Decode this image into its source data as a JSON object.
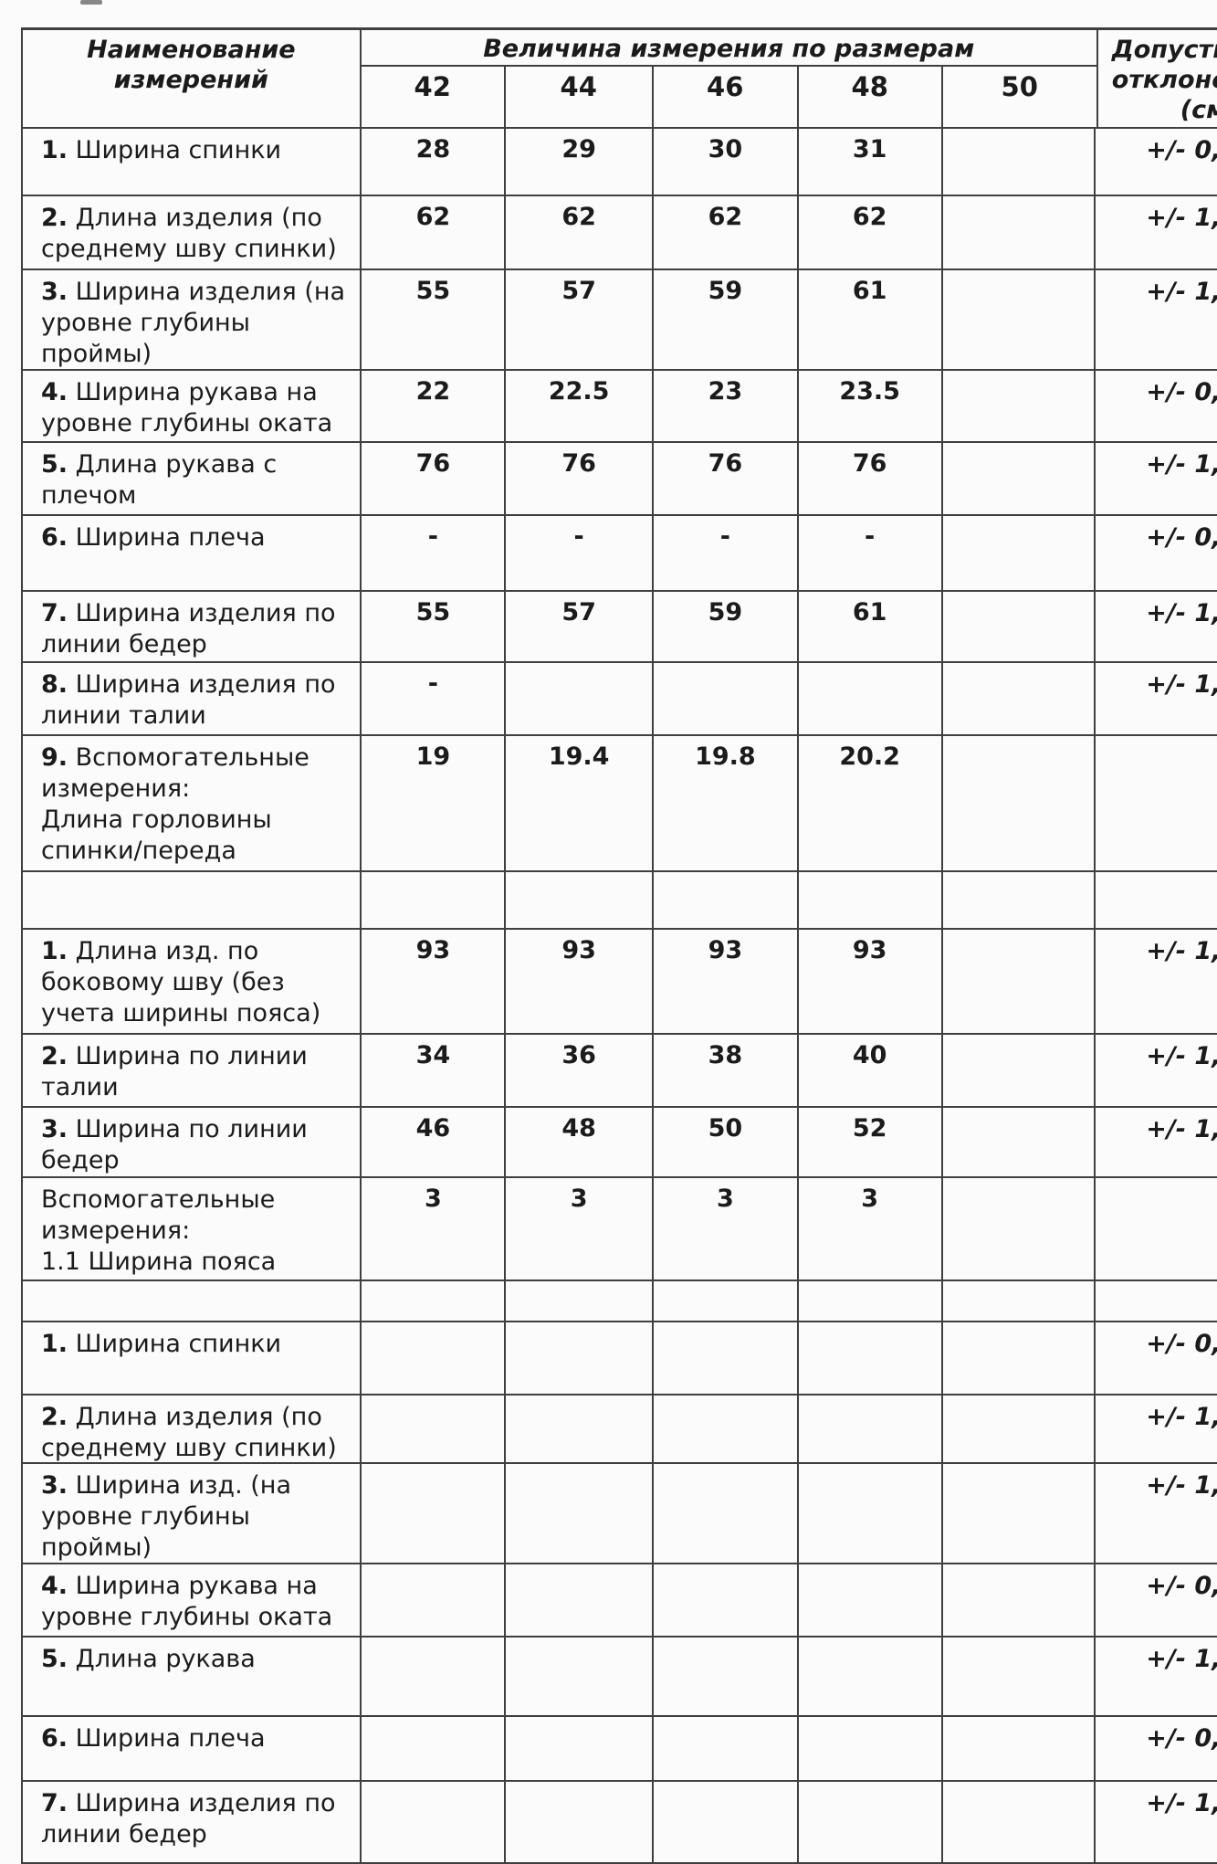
{
  "table": {
    "header": {
      "name_col": "Наименование\nизмерений",
      "span": "Величина измерения по размерам",
      "sizes": [
        "42",
        "44",
        "46",
        "48",
        "50"
      ],
      "tolerance_line1": "Допусти",
      "tolerance_line2": "отклоне",
      "tolerance_line3": "(см"
    },
    "rows": [
      {
        "num": "1.",
        "label": "Ширина спинки",
        "values": [
          "28",
          "29",
          "30",
          "31",
          ""
        ],
        "tolerance": "+/- 0,"
      },
      {
        "num": "2.",
        "label": "Длина изделия (по\nсреднему шву спинки)",
        "values": [
          "62",
          "62",
          "62",
          "62",
          ""
        ],
        "tolerance": "+/- 1,"
      },
      {
        "num": "3.",
        "label": "Ширина изделия (на\nуровне глубины\nпроймы)",
        "values": [
          "55",
          "57",
          "59",
          "61",
          ""
        ],
        "tolerance": "+/- 1,"
      },
      {
        "num": "4.",
        "label": "Ширина рукава на\nуровне глубины оката",
        "values": [
          "22",
          "22.5",
          "23",
          "23.5",
          ""
        ],
        "tolerance": "+/- 0,"
      },
      {
        "num": "5.",
        "label": "Длина рукава с\nплечом",
        "values": [
          "76",
          "76",
          "76",
          "76",
          ""
        ],
        "tolerance": "+/- 1,"
      },
      {
        "num": "6.",
        "label": "Ширина плеча",
        "values": [
          "-",
          "-",
          "-",
          "-",
          ""
        ],
        "tolerance": "+/- 0,"
      },
      {
        "num": "7.",
        "label": "Ширина изделия по\nлинии бедер",
        "values": [
          "55",
          "57",
          "59",
          "61",
          ""
        ],
        "tolerance": "+/- 1,"
      },
      {
        "num": "8.",
        "label": "Ширина изделия по\nлинии талии",
        "values": [
          "-",
          "",
          "",
          "",
          ""
        ],
        "tolerance": "+/- 1,"
      },
      {
        "num": "9.",
        "label": "Вспомогательные\nизмерения:\nДлина горловины\nспинки/переда",
        "values": [
          "19",
          "19.4",
          "19.8",
          "20.2",
          ""
        ],
        "tolerance": ""
      },
      {
        "num": "",
        "label": "",
        "values": [
          "",
          "",
          "",
          "",
          ""
        ],
        "tolerance": ""
      },
      {
        "num": "1.",
        "label": "Длина изд. по\nбоковому шву (без\nучета ширины пояса)",
        "values": [
          "93",
          "93",
          "93",
          "93",
          ""
        ],
        "tolerance": "+/- 1,"
      },
      {
        "num": "2.",
        "label": "Ширина по линии\nталии",
        "values": [
          "34",
          "36",
          "38",
          "40",
          ""
        ],
        "tolerance": "+/- 1,"
      },
      {
        "num": "3.",
        "label": "Ширина по линии\nбедер",
        "values": [
          "46",
          "48",
          "50",
          "52",
          ""
        ],
        "tolerance": "+/- 1,"
      },
      {
        "num": "",
        "label": "Вспомогательные\nизмерения:\n1.1 Ширина пояса",
        "values": [
          "3",
          "3",
          "3",
          "3",
          ""
        ],
        "tolerance": ""
      },
      {
        "num": "",
        "label": "",
        "values": [
          "",
          "",
          "",
          "",
          ""
        ],
        "tolerance": ""
      },
      {
        "num": "1.",
        "label": "Ширина спинки",
        "values": [
          "",
          "",
          "",
          "",
          ""
        ],
        "tolerance": "+/- 0,"
      },
      {
        "num": "2.",
        "label": "Длина изделия (по\nсреднему шву спинки)",
        "values": [
          "",
          "",
          "",
          "",
          ""
        ],
        "tolerance": "+/- 1,"
      },
      {
        "num": "3.",
        "label": "Ширина изд. (на\nуровне глубины\nпроймы)",
        "values": [
          "",
          "",
          "",
          "",
          ""
        ],
        "tolerance": "+/- 1,"
      },
      {
        "num": "4.",
        "label": "Ширина рукава на\nуровне глубины оката",
        "values": [
          "",
          "",
          "",
          "",
          ""
        ],
        "tolerance": "+/- 0,"
      },
      {
        "num": "5.",
        "label": "Длина рукава",
        "values": [
          "",
          "",
          "",
          "",
          ""
        ],
        "tolerance": "+/- 1,"
      },
      {
        "num": "6.",
        "label": "Ширина плеча",
        "values": [
          "",
          "",
          "",
          "",
          ""
        ],
        "tolerance": "+/- 0,"
      },
      {
        "num": "7.",
        "label": "Ширина изделия по\nлинии бедер",
        "values": [
          "",
          "",
          "",
          "",
          ""
        ],
        "tolerance": "+/- 1,"
      }
    ]
  }
}
